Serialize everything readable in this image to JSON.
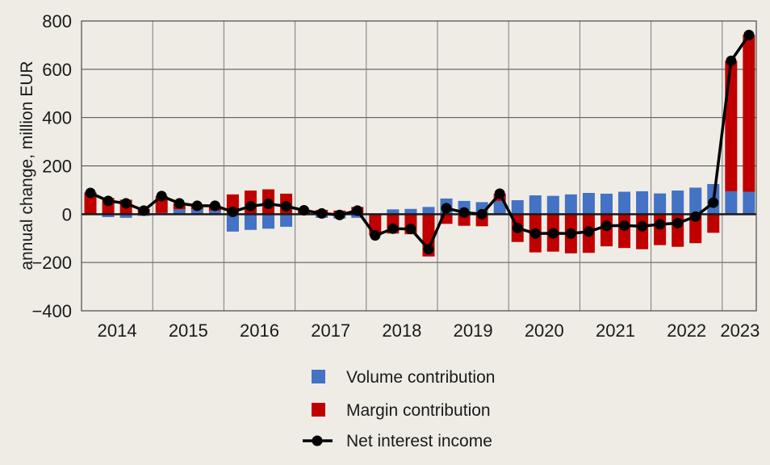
{
  "chart_data": {
    "type": "bar",
    "stacked": true,
    "title": "",
    "xlabel": "",
    "ylabel": "annual change, million EUR",
    "ylim": [
      -400,
      800
    ],
    "yticks": [
      800,
      600,
      400,
      200,
      0,
      -200,
      -400
    ],
    "ytick_labels": [
      "800",
      "600",
      "400",
      "200",
      "0",
      "−200",
      "−400"
    ],
    "grid": true,
    "years": [
      "2014",
      "2015",
      "2016",
      "2017",
      "2018",
      "2019",
      "2020",
      "2021",
      "2022",
      "2023"
    ],
    "quarters_per_year": [
      4,
      4,
      4,
      4,
      4,
      4,
      4,
      4,
      4,
      2
    ],
    "x": [
      "2014Q1",
      "2014Q2",
      "2014Q3",
      "2014Q4",
      "2015Q1",
      "2015Q2",
      "2015Q3",
      "2015Q4",
      "2016Q1",
      "2016Q2",
      "2016Q3",
      "2016Q4",
      "2017Q1",
      "2017Q2",
      "2017Q3",
      "2017Q4",
      "2018Q1",
      "2018Q2",
      "2018Q3",
      "2018Q4",
      "2019Q1",
      "2019Q2",
      "2019Q3",
      "2019Q4",
      "2020Q1",
      "2020Q2",
      "2020Q3",
      "2020Q4",
      "2021Q1",
      "2021Q2",
      "2021Q3",
      "2021Q4",
      "2022Q1",
      "2022Q2",
      "2022Q3",
      "2022Q4",
      "2023Q1",
      "2023Q2"
    ],
    "series": [
      {
        "name": "Volume contribution",
        "kind": "bar",
        "color": "#4472c4",
        "values": [
          2,
          -12,
          -15,
          -7,
          5,
          20,
          20,
          15,
          -72,
          -65,
          -60,
          -52,
          -2,
          -15,
          -18,
          -15,
          0,
          20,
          22,
          30,
          65,
          55,
          50,
          55,
          58,
          78,
          76,
          82,
          88,
          85,
          93,
          95,
          86,
          98,
          110,
          125,
          95,
          93
        ]
      },
      {
        "name": "Margin contribution",
        "kind": "bar",
        "color": "#c00000",
        "values": [
          88,
          67,
          60,
          22,
          70,
          25,
          15,
          20,
          82,
          98,
          103,
          85,
          18,
          18,
          15,
          30,
          -88,
          -80,
          -83,
          -175,
          -40,
          -48,
          -50,
          30,
          -115,
          -158,
          -155,
          -162,
          -160,
          -133,
          -140,
          -145,
          -128,
          -135,
          -120,
          -77,
          540,
          650
        ]
      },
      {
        "name": "Net interest income",
        "kind": "line",
        "color": "#000000",
        "values": [
          88,
          55,
          45,
          15,
          75,
          45,
          35,
          35,
          10,
          33,
          43,
          33,
          16,
          3,
          -3,
          15,
          -88,
          -60,
          -61,
          -145,
          25,
          7,
          0,
          85,
          -57,
          -80,
          -79,
          -80,
          -72,
          -48,
          -47,
          -50,
          -42,
          -37,
          -10,
          48,
          635,
          742
        ]
      }
    ],
    "legend": {
      "placement": "bottom-center",
      "entries": [
        "Volume contribution",
        "Margin contribution",
        "Net interest income"
      ]
    }
  }
}
